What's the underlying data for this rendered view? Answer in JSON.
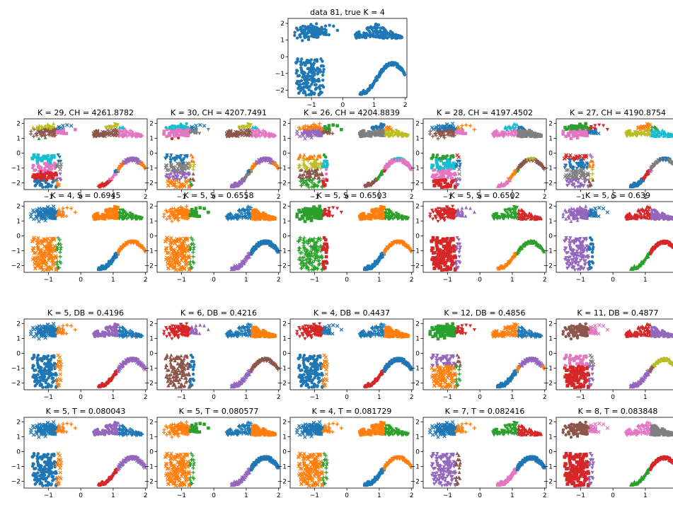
{
  "figure": {
    "top_title": "data 81, true K = 4"
  },
  "palette": {
    "tab:blue": "#1f77b4",
    "tab:orange": "#ff7f0e",
    "tab:green": "#2ca02c",
    "tab:red": "#d62728",
    "tab:purple": "#9467bd",
    "tab:brown": "#8c564b",
    "tab:pink": "#e377c2",
    "tab:gray": "#7f7f7f",
    "tab:olive": "#bcbd22",
    "tab:cyan": "#17becf"
  },
  "chart_data": {
    "type": "scatter",
    "dataset_groups": [
      {
        "name": "square",
        "x_range": [
          -1.5,
          -0.6
        ],
        "y_range": [
          -2.3,
          -0.1
        ],
        "shape": "rectangle"
      },
      {
        "name": "blob",
        "center": [
          -1.0,
          1.5
        ],
        "spread": [
          0.28,
          0.22
        ],
        "shape": "ellipse"
      },
      {
        "name": "triangle",
        "x_range": [
          0.4,
          1.9
        ],
        "y_range": [
          1.1,
          2.0
        ],
        "apex_x": 1.05,
        "shape": "triangle"
      },
      {
        "name": "wave",
        "x_range": [
          0.55,
          1.98
        ],
        "y_of_x": "sine",
        "y_range": [
          -2.2,
          -0.4
        ],
        "shape": "curve"
      }
    ],
    "axes": {
      "xlim": [
        -1.75,
        2.05
      ],
      "ylim": [
        -2.45,
        2.3
      ],
      "xticks": [
        -1,
        0,
        1,
        2
      ],
      "yticks": [
        -2,
        -1,
        0,
        1,
        2
      ],
      "xtick_labels": [
        "−1",
        "0",
        "1",
        "2"
      ],
      "ytick_labels": [
        "−2",
        "−1",
        "0",
        "1",
        "2"
      ]
    },
    "panels": [
      {
        "title": "K = 29, CH = 4261.8782",
        "clusters": 29
      },
      {
        "title": "K = 30, CH = 4207.7491",
        "clusters": 30
      },
      {
        "title": "K = 26, CH = 4204.8839",
        "clusters": 26
      },
      {
        "title": "K = 28, CH = 4197.4502",
        "clusters": 28
      },
      {
        "title": "K = 27, CH = 4190.8754",
        "clusters": 27
      },
      {
        "title": "K = 4, S = 0.6945",
        "clusters": 4
      },
      {
        "title": "K = 5, S = 0.6558",
        "clusters": 5
      },
      {
        "title": "K = 5, S = 0.6503",
        "clusters": 5
      },
      {
        "title": "K = 5, S = 0.6502",
        "clusters": 5
      },
      {
        "title": "K = 5, S = 0.639",
        "clusters": 5
      },
      {
        "title": "K = 5, DB = 0.4196",
        "clusters": 5
      },
      {
        "title": "K = 6, DB = 0.4216",
        "clusters": 6
      },
      {
        "title": "K = 4, DB = 0.4437",
        "clusters": 4
      },
      {
        "title": "K = 12, DB = 0.4856",
        "clusters": 12
      },
      {
        "title": "K = 11, DB = 0.4877",
        "clusters": 11
      },
      {
        "title": "K = 5, T = 0.080043",
        "clusters": 5
      },
      {
        "title": "K = 5, T = 0.080577",
        "clusters": 5
      },
      {
        "title": "K = 4, T = 0.081729",
        "clusters": 4
      },
      {
        "title": "K = 7, T = 0.082416",
        "clusters": 7
      },
      {
        "title": "K = 8, T = 0.083848",
        "clusters": 8
      }
    ]
  }
}
